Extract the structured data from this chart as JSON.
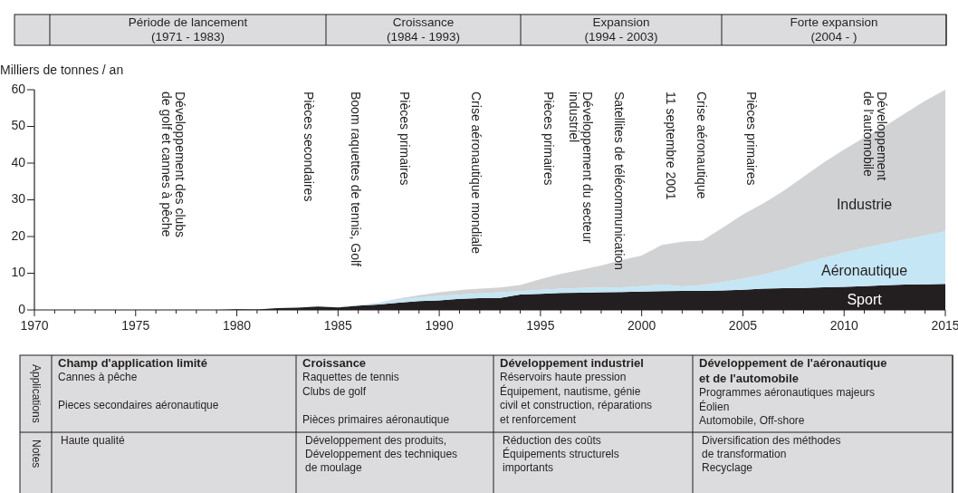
{
  "chart_data": {
    "type": "area",
    "stacked": true,
    "ylabel": "Milliers de tonnes / an",
    "x": [
      1979,
      1980,
      1981,
      1982,
      1983,
      1984,
      1985,
      1986,
      1987,
      1988,
      1989,
      1990,
      1991,
      1992,
      1993,
      1994,
      1995,
      1996,
      1997,
      1998,
      1999,
      2000,
      2001,
      2002,
      2003,
      2004,
      2005,
      2006,
      2007,
      2008,
      2009,
      2010,
      2011,
      2012,
      2013,
      2014,
      2015
    ],
    "series": [
      {
        "name": "Sport",
        "color": "#231f20",
        "values": [
          0,
          0.2,
          0.1,
          0.5,
          0.6,
          0.9,
          0.7,
          1.2,
          1.5,
          2.0,
          2.4,
          2.6,
          3.0,
          3.2,
          3.3,
          4.2,
          4.4,
          4.6,
          4.7,
          4.8,
          4.9,
          5.0,
          5.1,
          5.2,
          5.2,
          5.3,
          5.5,
          5.8,
          5.9,
          6.0,
          6.2,
          6.3,
          6.5,
          6.7,
          6.9,
          7.0,
          7.1
        ]
      },
      {
        "name": "Aéronautique",
        "color": "#c5e6f5",
        "values": [
          0,
          0,
          0,
          0,
          0,
          0,
          0,
          0.1,
          0.4,
          0.8,
          1.0,
          1.2,
          1.2,
          1.3,
          1.5,
          0.9,
          1.1,
          1.2,
          1.3,
          1.3,
          1.3,
          1.5,
          1.9,
          1.2,
          1.6,
          2.3,
          3.0,
          3.8,
          5.1,
          6.8,
          8.0,
          9.3,
          10.5,
          11.3,
          12.3,
          13.3,
          14.3
        ]
      },
      {
        "name": "Industrie",
        "color": "#d1d2d4",
        "values": [
          0,
          0,
          0,
          0,
          0,
          0,
          0,
          0,
          0.1,
          0.3,
          0.6,
          1.0,
          1.2,
          1.3,
          1.3,
          1.7,
          2.9,
          4.0,
          4.9,
          6.0,
          7.4,
          8.3,
          10.7,
          12.2,
          12.1,
          14.8,
          17.5,
          19.4,
          21.4,
          23.5,
          26.0,
          28.1,
          30.0,
          32.0,
          34.3,
          36.7,
          38.6
        ]
      }
    ],
    "xlim": [
      1970,
      2015
    ],
    "xticks": [
      1970,
      {
        "value": 1971,
        "label": null
      },
      {
        "value": 1972,
        "label": null
      },
      {
        "value": 1973,
        "label": null
      },
      {
        "value": 1974,
        "label": null
      },
      1975,
      {
        "value": 1976,
        "label": null
      },
      {
        "value": 1977,
        "label": null
      },
      {
        "value": 1978,
        "label": null
      },
      {
        "value": 1979,
        "label": null
      },
      1980,
      {
        "value": 1981,
        "label": null
      },
      {
        "value": 1982,
        "label": null
      },
      {
        "value": 1983,
        "label": null
      },
      {
        "value": 1984,
        "label": null
      },
      1985,
      {
        "value": 1986,
        "label": null
      },
      {
        "value": 1987,
        "label": null
      },
      {
        "value": 1988,
        "label": null
      },
      {
        "value": 1989,
        "label": null
      },
      1990,
      {
        "value": 1991,
        "label": null
      },
      {
        "value": 1992,
        "label": null
      },
      {
        "value": 1993,
        "label": null
      },
      {
        "value": 1994,
        "label": null
      },
      1995,
      {
        "value": 1996,
        "label": null
      },
      {
        "value": 1997,
        "label": null
      },
      {
        "value": 1998,
        "label": null
      },
      {
        "value": 1999,
        "label": null
      },
      2000,
      {
        "value": 2001,
        "label": null
      },
      {
        "value": 2002,
        "label": null
      },
      {
        "value": 2003,
        "label": null
      },
      {
        "value": 2004,
        "label": null
      },
      2005,
      {
        "value": 2006,
        "label": null
      },
      {
        "value": 2007,
        "label": null
      },
      {
        "value": 2008,
        "label": null
      },
      {
        "value": 2009,
        "label": null
      },
      2010,
      {
        "value": 2011,
        "label": null
      },
      {
        "value": 2012,
        "label": null
      },
      {
        "value": 2013,
        "label": null
      },
      {
        "value": 2014,
        "label": null
      },
      2015
    ],
    "ylim": [
      0,
      60
    ],
    "yticks": [
      0,
      10,
      20,
      30,
      40,
      50,
      60
    ],
    "grid": false,
    "legend": false,
    "annotations": [
      "Période de lancement\n(1971 - 1983)",
      "Croissance\n(1984 - 1993)",
      "Expansion\n(1994 - 2003)",
      "Forte expansion\n(2004 - )",
      "Applications",
      "Notes",
      "Champ d'application limité",
      "Croissance",
      "Développement industriel",
      "Développement de l'aéronautique\net de l'automobile",
      "Cannes à pêche\n\nPieces secondaires aéronautique",
      "Raquettes de tennis\nClubs de golf\n\nPièces primaires aéronautique",
      "Réservoirs haute pression\nÉquipement, nautisme, génie\ncivil et construction, réparations\net renforcement",
      "Programmes aéronautiques majeurs\nÉolien\nAutomobile, Off-shore",
      "Haute qualité",
      "Développement des produits,\nDéveloppement des techniques\nde moulage",
      "Réduction des coûts\nÉquipements structurels\nimportants",
      "Diversification des méthodes\nde transformation\nRecyclage",
      "Développement des clubs\nde golf et cannes à pêche",
      "Pièces secondaires",
      "Boom raquettes de tennis, Golf",
      "Pièces primaires",
      "Crise aéronautique mondiale",
      "Pièces primaires",
      "Développement du secteur\nindustriel",
      "Satellites de télécommunication",
      "11 septembre 2001",
      "Crise aéronautique",
      "Pièces primaires",
      "Développement\nde l'automobile"
    ]
  }
}
